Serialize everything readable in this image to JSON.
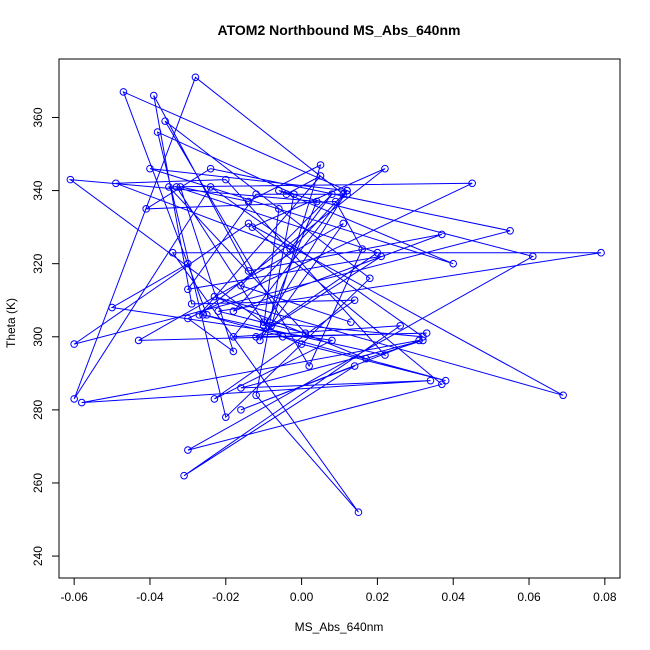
{
  "chart_data": {
    "type": "line",
    "title": "ATOM2 Northbound MS_Abs_640nm",
    "xlabel": "MS_Abs_640nm",
    "ylabel": "Theta (K)",
    "xlim": [
      -0.064,
      0.084
    ],
    "ylim": [
      234,
      376
    ],
    "xticks": [
      -0.06,
      -0.04,
      -0.02,
      0.0,
      0.02,
      0.04,
      0.06,
      0.08
    ],
    "xtick_labels": [
      "-0.06",
      "-0.04",
      "-0.02",
      "0.00",
      "0.02",
      "0.04",
      "0.06",
      "0.08"
    ],
    "yticks": [
      240,
      260,
      280,
      300,
      320,
      340,
      360
    ],
    "ytick_labels": [
      "240",
      "260",
      "280",
      "300",
      "320",
      "340",
      "360"
    ],
    "grid": false,
    "series": [
      {
        "color": "#0000ff",
        "marker": "open-circle",
        "x": [
          -0.006,
          -0.01,
          0.012,
          -0.047,
          -0.025,
          -0.03,
          -0.05,
          0.008,
          -0.023,
          0.014,
          -0.029,
          -0.039,
          -0.014,
          0.037,
          -0.018,
          0.011,
          -0.028,
          -0.06,
          -0.024,
          0.032,
          -0.01,
          -0.033,
          0.02,
          -0.008,
          0.005,
          -0.014,
          -0.032,
          -0.018,
          -0.03,
          0.045,
          -0.035,
          0.001,
          -0.022,
          0.079,
          -0.034,
          0.015,
          -0.012,
          -0.002,
          -0.038,
          -0.02,
          0.018,
          -0.036,
          0.002,
          0.016,
          0.009,
          -0.041,
          -0.024,
          0.055,
          -0.06,
          -0.014,
          0.069,
          -0.023,
          0.017,
          0.032,
          -0.016,
          0.034,
          -0.058,
          0.031,
          -0.016,
          0.014,
          -0.031,
          0.026,
          -0.018,
          0.012,
          -0.04,
          0.04,
          -0.006,
          0.061,
          -0.03,
          0.037,
          -0.013,
          0.022,
          -0.027,
          0.005,
          -0.004,
          0.012,
          -0.012,
          -0.03,
          0.021,
          -0.012,
          0.033,
          -0.043,
          0.011,
          -0.011,
          0.004,
          -0.061,
          -0.005,
          0.0,
          0.038,
          -0.026,
          0.022,
          -0.02,
          -0.049,
          -0.003,
          0.008,
          -0.016,
          0.013
        ],
        "y": [
          335,
          303,
          340,
          367,
          306,
          320,
          308,
          299,
          283,
          310,
          309,
          366,
          318,
          328,
          307,
          339,
          371,
          283,
          341,
          300,
          304,
          341,
          323,
          303,
          347,
          337,
          341,
          296,
          305,
          342,
          341,
          301,
          307,
          323,
          323,
          252,
          284,
          339,
          356,
          278,
          316,
          359,
          292,
          324,
          337,
          335,
          346,
          329,
          298,
          331,
          284,
          311,
          294,
          299,
          286,
          288,
          282,
          299,
          280,
          292,
          262,
          303,
          300,
          340,
          346,
          320,
          340,
          322,
          269,
          287,
          330,
          346,
          306,
          344,
          339,
          339,
          339,
          313,
          322,
          300,
          301,
          299,
          331,
          299,
          337,
          343,
          300,
          298,
          288,
          306,
          295,
          343,
          342,
          324,
          339,
          314,
          304
        ]
      }
    ]
  }
}
